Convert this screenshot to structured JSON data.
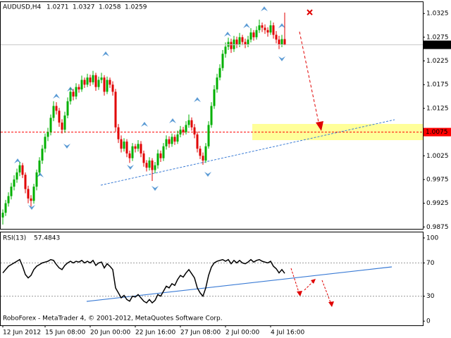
{
  "chart_data": [
    {
      "type": "candlestick",
      "title": "AUDUSD,H4",
      "up_color": "#00b000",
      "down_color": "#e00000",
      "ylim": [
        0.9871,
        1.0349
      ],
      "yticks": [
        0.9875,
        0.9925,
        0.9975,
        1.0025,
        1.0125,
        1.0175,
        1.0225,
        1.0275,
        1.0325
      ],
      "xlim": [
        -1,
        149
      ],
      "level": 1.0075,
      "level_color": "#ff0000",
      "ohlc": [
        [
          0.9895,
          0.9912,
          0.988,
          0.9905
        ],
        [
          0.9905,
          0.9932,
          0.9898,
          0.9925
        ],
        [
          0.9925,
          0.9948,
          0.9918,
          0.994
        ],
        [
          0.994,
          0.9968,
          0.9933,
          0.996
        ],
        [
          0.996,
          0.9984,
          0.9952,
          0.9975
        ],
        [
          0.9975,
          0.9998,
          0.9968,
          0.999
        ],
        [
          0.999,
          1.0012,
          0.9982,
          1.0005
        ],
        [
          1.0005,
          1.001,
          0.9978,
          0.9985
        ],
        [
          0.9985,
          0.999,
          0.9946,
          0.9955
        ],
        [
          0.9955,
          0.9962,
          0.9925,
          0.9935
        ],
        [
          0.9935,
          0.9942,
          0.9918,
          0.993
        ],
        [
          0.993,
          0.9966,
          0.9924,
          0.996
        ],
        [
          0.996,
          0.9996,
          0.9952,
          0.999
        ],
        [
          0.999,
          1.0022,
          0.9984,
          1.0015
        ],
        [
          1.0015,
          1.0048,
          1.0008,
          1.004
        ],
        [
          1.004,
          1.0072,
          1.0032,
          1.0065
        ],
        [
          1.0065,
          1.0084,
          1.0056,
          1.0075
        ],
        [
          1.0075,
          1.0112,
          1.0068,
          1.0105
        ],
        [
          1.0105,
          1.014,
          1.0098,
          1.013
        ],
        [
          1.013,
          1.0138,
          1.0112,
          1.012
        ],
        [
          1.012,
          1.0126,
          1.0086,
          1.0095
        ],
        [
          1.0095,
          1.0102,
          1.0072,
          1.008
        ],
        [
          1.008,
          1.0118,
          1.0074,
          1.011
        ],
        [
          1.011,
          1.0148,
          1.0104,
          1.014
        ],
        [
          1.014,
          1.0168,
          1.0133,
          1.016
        ],
        [
          1.016,
          1.0166,
          1.0142,
          1.015
        ],
        [
          1.015,
          1.0178,
          1.0144,
          1.017
        ],
        [
          1.017,
          1.0176,
          1.0158,
          1.0165
        ],
        [
          1.0165,
          1.0194,
          1.016,
          1.0185
        ],
        [
          1.0185,
          1.019,
          1.0168,
          1.0175
        ],
        [
          1.0175,
          1.0198,
          1.017,
          1.019
        ],
        [
          1.019,
          1.0196,
          1.0172,
          1.018
        ],
        [
          1.018,
          1.0204,
          1.0175,
          1.0195
        ],
        [
          1.0195,
          1.02,
          1.0162,
          1.017
        ],
        [
          1.017,
          1.0192,
          1.0164,
          1.0185
        ],
        [
          1.0185,
          1.02,
          1.0178,
          1.019
        ],
        [
          1.019,
          1.0195,
          1.0152,
          1.016
        ],
        [
          1.016,
          1.0192,
          1.0155,
          1.0185
        ],
        [
          1.0185,
          1.019,
          1.0168,
          1.0175
        ],
        [
          1.0175,
          1.0182,
          1.0152,
          1.016
        ],
        [
          1.016,
          1.0166,
          1.0076,
          1.0085
        ],
        [
          1.0085,
          1.0092,
          1.0052,
          1.006
        ],
        [
          1.006,
          1.0068,
          1.0032,
          1.004
        ],
        [
          1.004,
          1.0062,
          1.0034,
          1.0055
        ],
        [
          1.0055,
          1.006,
          1.0022,
          1.003
        ],
        [
          1.003,
          1.0036,
          1.001,
          1.002
        ],
        [
          1.002,
          1.0052,
          1.0014,
          1.0045
        ],
        [
          1.0045,
          1.005,
          1.0032,
          1.004
        ],
        [
          1.004,
          1.0058,
          1.0034,
          1.005
        ],
        [
          1.005,
          1.0056,
          1.0022,
          1.003
        ],
        [
          1.003,
          1.0036,
          1.0002,
          1.001
        ],
        [
          1.001,
          1.0016,
          0.9992,
          1.0
        ],
        [
          1.0,
          1.0022,
          0.9994,
          1.0015
        ],
        [
          1.0015,
          1.002,
          0.9972,
          0.9995
        ],
        [
          0.9995,
          1.0012,
          0.9988,
          1.0005
        ],
        [
          1.0005,
          1.0038,
          0.9998,
          1.003
        ],
        [
          1.003,
          1.0036,
          1.0012,
          1.002
        ],
        [
          1.002,
          1.0052,
          1.0014,
          1.0045
        ],
        [
          1.0045,
          1.0068,
          1.0038,
          1.006
        ],
        [
          1.006,
          1.0066,
          1.0042,
          1.005
        ],
        [
          1.005,
          1.0072,
          1.0044,
          1.0065
        ],
        [
          1.0065,
          1.007,
          1.0048,
          1.0055
        ],
        [
          1.0055,
          1.0078,
          1.005,
          1.007
        ],
        [
          1.007,
          1.0088,
          1.0064,
          1.008
        ],
        [
          1.008,
          1.0086,
          1.0068,
          1.0075
        ],
        [
          1.0075,
          1.0098,
          1.007,
          1.009
        ],
        [
          1.009,
          1.0112,
          1.0084,
          1.01
        ],
        [
          1.01,
          1.0106,
          1.0078,
          1.0085
        ],
        [
          1.0085,
          1.0092,
          1.0062,
          1.007
        ],
        [
          1.007,
          1.0076,
          1.0032,
          1.004
        ],
        [
          1.004,
          1.0046,
          1.0018,
          1.0025
        ],
        [
          1.0025,
          1.0032,
          1.0006,
          1.0015
        ],
        [
          1.0015,
          1.0052,
          1.001,
          1.0045
        ],
        [
          1.0045,
          1.0098,
          1.004,
          1.009
        ],
        [
          1.009,
          1.0138,
          1.0084,
          1.013
        ],
        [
          1.013,
          1.0174,
          1.0124,
          1.0165
        ],
        [
          1.0165,
          1.0198,
          1.0158,
          1.019
        ],
        [
          1.019,
          1.0218,
          1.0184,
          1.021
        ],
        [
          1.021,
          1.0248,
          1.0204,
          1.024
        ],
        [
          1.024,
          1.0264,
          1.0232,
          1.0255
        ],
        [
          1.0255,
          1.0274,
          1.0248,
          1.0265
        ],
        [
          1.0265,
          1.0272,
          1.0242,
          1.025
        ],
        [
          1.025,
          1.0278,
          1.0244,
          1.027
        ],
        [
          1.027,
          1.0276,
          1.0252,
          1.026
        ],
        [
          1.026,
          1.0284,
          1.0254,
          1.0275
        ],
        [
          1.0275,
          1.028,
          1.0258,
          1.0265
        ],
        [
          1.0265,
          1.0272,
          1.0252,
          1.026
        ],
        [
          1.026,
          1.0278,
          1.0254,
          1.027
        ],
        [
          1.027,
          1.0294,
          1.0264,
          1.0285
        ],
        [
          1.0285,
          1.029,
          1.0268,
          1.0275
        ],
        [
          1.0275,
          1.0298,
          1.027,
          1.029
        ],
        [
          1.029,
          1.0312,
          1.0284,
          1.03
        ],
        [
          1.03,
          1.0306,
          1.0286,
          1.0295
        ],
        [
          1.0295,
          1.0302,
          1.0282,
          1.029
        ],
        [
          1.029,
          1.0296,
          1.0276,
          1.0285
        ],
        [
          1.0285,
          1.031,
          1.028,
          1.03
        ],
        [
          1.03,
          1.0306,
          1.0272,
          1.028
        ],
        [
          1.028,
          1.0288,
          1.0262,
          1.027
        ],
        [
          1.027,
          1.0278,
          1.025,
          1.026
        ],
        [
          1.026,
          1.028,
          1.0254,
          1.0271
        ],
        [
          1.0271,
          1.0327,
          1.0258,
          1.0259
        ]
      ]
    },
    {
      "type": "line",
      "title": "RSI(13)",
      "color": "#000000",
      "ylim": [
        -5,
        106.7
      ],
      "yticks": [
        100,
        70,
        30,
        0
      ],
      "levels": [
        70,
        30
      ],
      "xlim": [
        -1,
        149
      ],
      "xticks": [
        {
          "value": 0,
          "label": "12 Jun 2012"
        },
        {
          "value": 15,
          "label": "15 Jun 08:00"
        },
        {
          "value": 31,
          "label": "20 Jun 00:00"
        },
        {
          "value": 47,
          "label": "22 Jun 16:00"
        },
        {
          "value": 63,
          "label": "27 Jun 08:00"
        },
        {
          "value": 79,
          "label": "2 Jul 00:00"
        },
        {
          "value": 95,
          "label": "4 Jul 16:00"
        }
      ],
      "annotation": "RoboForex - MetaTrader 4, © 2001-2012, MetaQuotes Software Corp.",
      "values": [
        58,
        62,
        66,
        68,
        70,
        72,
        74,
        66,
        56,
        52,
        55,
        62,
        66,
        68,
        70,
        71,
        72,
        74,
        73,
        68,
        64,
        62,
        67,
        70,
        72,
        70,
        72,
        71,
        73,
        70,
        72,
        70,
        73,
        67,
        70,
        71,
        64,
        69,
        66,
        62,
        40,
        34,
        28,
        31,
        26,
        24,
        30,
        29,
        32,
        28,
        24,
        22,
        26,
        22,
        25,
        32,
        30,
        36,
        42,
        40,
        45,
        43,
        50,
        55,
        53,
        58,
        62,
        57,
        52,
        40,
        34,
        30,
        40,
        55,
        65,
        70,
        72,
        73,
        74,
        72,
        74,
        69,
        73,
        70,
        73,
        70,
        69,
        71,
        74,
        71,
        73,
        74,
        72,
        71,
        70,
        72,
        66,
        63,
        58,
        62,
        57.4843
      ]
    }
  ]
}
